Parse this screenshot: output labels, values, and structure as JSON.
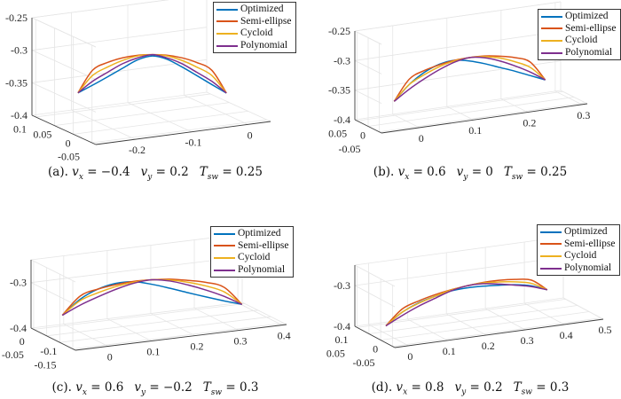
{
  "colors": {
    "Optimized": "#0072BD",
    "Semi-ellipse": "#D95319",
    "Cycloid": "#EDB120",
    "Polynomial": "#7E2F8E",
    "grid": "#e5e5e5",
    "axis": "#3c3c3c"
  },
  "legend": [
    "Optimized",
    "Semi-ellipse",
    "Cycloid",
    "Polynomial"
  ],
  "captions": [
    {
      "label": "(a).",
      "vx": "= −0.4",
      "vy": "= 0.2",
      "tsw": "= 0.25"
    },
    {
      "label": "(b).",
      "vx": "= 0.6",
      "vy": "= 0",
      "tsw": "= 0.25"
    },
    {
      "label": "(c).",
      "vx": "= 0.6",
      "vy": "= −0.2",
      "tsw": "= 0.3"
    },
    {
      "label": "(d).",
      "vx": "= 0.8",
      "vy": "= 0.2",
      "tsw": "= 0.3"
    }
  ],
  "caption_symbols": {
    "v": "v",
    "x": "x",
    "y": "y",
    "T": "T",
    "sw": "sw"
  },
  "chart_data": [
    {
      "type": "line3d",
      "grid": true,
      "legend_position": "top-right",
      "xlim": [
        -0.27,
        0.04
      ],
      "ylim": [
        -0.06,
        0.11
      ],
      "zlim": [
        -0.4,
        -0.25
      ],
      "xticks": [
        -0.2,
        -0.1,
        0
      ],
      "xticklabels": [
        "-0.2",
        "-0.1",
        "0"
      ],
      "yticks": [
        -0.05,
        0,
        0.05,
        0.1
      ],
      "yticklabels": [
        "-0.05",
        "0",
        "0.05",
        "0.1"
      ],
      "zticks": [
        -0.4,
        -0.35,
        -0.3,
        -0.25
      ],
      "zticklabels": [
        "-0.4",
        "-0.35",
        "-0.3",
        "-0.25"
      ],
      "x": [
        -0.239,
        -0.219,
        -0.198,
        -0.178,
        -0.157,
        -0.137,
        -0.117,
        -0.096,
        -0.076,
        -0.055,
        -0.035
      ],
      "y": [
        0.034,
        0.025,
        0.016,
        0.007,
        -0.002,
        -0.011,
        -0.019,
        -0.028,
        -0.037,
        -0.046,
        -0.055
      ],
      "series": [
        {
          "name": "Optimized",
          "z": [
            -0.349,
            -0.337,
            -0.324,
            -0.311,
            -0.298,
            -0.292,
            -0.297,
            -0.309,
            -0.322,
            -0.336,
            -0.349
          ]
        },
        {
          "name": "Semi-ellipse",
          "z": [
            -0.349,
            -0.314,
            -0.302,
            -0.295,
            -0.291,
            -0.29,
            -0.291,
            -0.295,
            -0.302,
            -0.314,
            -0.349
          ]
        },
        {
          "name": "Cycloid",
          "z": [
            -0.349,
            -0.322,
            -0.309,
            -0.299,
            -0.292,
            -0.29,
            -0.292,
            -0.299,
            -0.309,
            -0.322,
            -0.349
          ]
        },
        {
          "name": "Polynomial",
          "z": [
            -0.349,
            -0.331,
            -0.317,
            -0.304,
            -0.295,
            -0.29,
            -0.295,
            -0.304,
            -0.317,
            -0.331,
            -0.349
          ]
        }
      ]
    },
    {
      "type": "line3d",
      "grid": true,
      "legend_position": "top-right",
      "xlim": [
        -0.07,
        0.31
      ],
      "ylim": [
        -0.06,
        0.06
      ],
      "zlim": [
        -0.4,
        -0.25
      ],
      "xticks": [
        0,
        0.1,
        0.2,
        0.3
      ],
      "xticklabels": [
        "0",
        "0.1",
        "0.2",
        "0.3"
      ],
      "yticks": [
        -0.05,
        0,
        0.05
      ],
      "yticklabels": [
        "-0.05",
        "0",
        "0.05"
      ],
      "zticks": [
        -0.4,
        -0.35,
        -0.3,
        -0.25
      ],
      "zticklabels": [
        "-0.4",
        "-0.35",
        "-0.3",
        "-0.25"
      ],
      "x": [
        -0.022,
        0.006,
        0.034,
        0.062,
        0.09,
        0.118,
        0.145,
        0.173,
        0.201,
        0.229,
        0.257
      ],
      "y": [
        0,
        0,
        0,
        0,
        0,
        0,
        0,
        0,
        0,
        0,
        0
      ],
      "series": [
        {
          "name": "Optimized",
          "z": [
            -0.364,
            -0.339,
            -0.322,
            -0.312,
            -0.309,
            -0.314,
            -0.322,
            -0.332,
            -0.342,
            -0.353,
            -0.364
          ]
        },
        {
          "name": "Semi-ellipse",
          "z": [
            -0.364,
            -0.33,
            -0.319,
            -0.313,
            -0.309,
            -0.308,
            -0.309,
            -0.313,
            -0.319,
            -0.33,
            -0.364
          ]
        },
        {
          "name": "Cycloid",
          "z": [
            -0.364,
            -0.339,
            -0.326,
            -0.316,
            -0.31,
            -0.308,
            -0.31,
            -0.316,
            -0.326,
            -0.339,
            -0.364
          ]
        },
        {
          "name": "Polynomial",
          "z": [
            -0.364,
            -0.347,
            -0.333,
            -0.321,
            -0.312,
            -0.308,
            -0.312,
            -0.321,
            -0.333,
            -0.347,
            -0.364
          ]
        }
      ]
    },
    {
      "type": "line3d",
      "grid": true,
      "legend_position": "top-right",
      "xlim": [
        -0.075,
        0.41
      ],
      "ylim": [
        -0.16,
        0.01
      ],
      "zlim": [
        -0.4,
        -0.25
      ],
      "xticks": [
        0,
        0.1,
        0.2,
        0.3,
        0.4
      ],
      "xticklabels": [
        "0",
        "0.1",
        "0.2",
        "0.3",
        "0.4"
      ],
      "yticks": [
        -0.15,
        -0.1,
        -0.05,
        0
      ],
      "yticklabels": [
        "-0.15",
        "-0.1",
        "-0.05",
        "0"
      ],
      "zticks": [
        -0.4,
        -0.3
      ],
      "zticklabels": [
        "-0.4",
        "-0.3"
      ],
      "x": [
        -0.044,
        -0.007,
        0.03,
        0.068,
        0.105,
        0.142,
        0.179,
        0.216,
        0.254,
        0.291,
        0.328
      ],
      "y": [
        -0.058,
        -0.065,
        -0.072,
        -0.078,
        -0.085,
        -0.092,
        -0.099,
        -0.106,
        -0.112,
        -0.119,
        -0.126
      ],
      "series": [
        {
          "name": "Optimized",
          "z": [
            -0.356,
            -0.323,
            -0.303,
            -0.293,
            -0.292,
            -0.3,
            -0.311,
            -0.323,
            -0.335,
            -0.346,
            -0.356
          ]
        },
        {
          "name": "Semi-ellipse",
          "z": [
            -0.356,
            -0.316,
            -0.303,
            -0.296,
            -0.291,
            -0.29,
            -0.291,
            -0.296,
            -0.303,
            -0.316,
            -0.356
          ]
        },
        {
          "name": "Cycloid",
          "z": [
            -0.356,
            -0.326,
            -0.311,
            -0.3,
            -0.293,
            -0.29,
            -0.293,
            -0.3,
            -0.311,
            -0.326,
            -0.356
          ]
        },
        {
          "name": "Polynomial",
          "z": [
            -0.356,
            -0.336,
            -0.32,
            -0.306,
            -0.295,
            -0.29,
            -0.295,
            -0.306,
            -0.32,
            -0.336,
            -0.356
          ]
        }
      ]
    },
    {
      "type": "line3d",
      "grid": true,
      "legend_position": "top-right",
      "xlim": [
        -0.035,
        0.5
      ],
      "ylim": [
        -0.06,
        0.11
      ],
      "zlim": [
        -0.4,
        -0.25
      ],
      "xticks": [
        0,
        0.1,
        0.2,
        0.3,
        0.4,
        0.5
      ],
      "xticklabels": [
        "0",
        "0.1",
        "0.2",
        "0.3",
        "0.4",
        "0.5"
      ],
      "yticks": [
        -0.05,
        0,
        0.05,
        0.1
      ],
      "yticklabels": [
        "-0.05",
        "0",
        "0.05",
        "0.1"
      ],
      "zticks": [
        -0.4,
        -0.3
      ],
      "zticklabels": [
        "-0.4",
        "-0.3"
      ],
      "x": [
        -0.017,
        0.028,
        0.072,
        0.117,
        0.161,
        0.206,
        0.25,
        0.295,
        0.339,
        0.384,
        0.428
      ],
      "y": [
        0.008,
        0.013,
        0.018,
        0.023,
        0.028,
        0.034,
        0.039,
        0.044,
        0.049,
        0.054,
        0.059
      ],
      "series": [
        {
          "name": "Optimized",
          "z": [
            -0.37,
            -0.344,
            -0.329,
            -0.32,
            -0.314,
            -0.314,
            -0.317,
            -0.322,
            -0.328,
            -0.338,
            -0.355
          ]
        },
        {
          "name": "Semi-ellipse",
          "z": [
            -0.37,
            -0.336,
            -0.324,
            -0.316,
            -0.311,
            -0.309,
            -0.308,
            -0.31,
            -0.315,
            -0.324,
            -0.355
          ]
        },
        {
          "name": "Cycloid",
          "z": [
            -0.37,
            -0.344,
            -0.33,
            -0.32,
            -0.312,
            -0.309,
            -0.309,
            -0.314,
            -0.321,
            -0.332,
            -0.355
          ]
        },
        {
          "name": "Polynomial",
          "z": [
            -0.37,
            -0.352,
            -0.337,
            -0.325,
            -0.314,
            -0.309,
            -0.311,
            -0.319,
            -0.329,
            -0.34,
            -0.355
          ]
        }
      ]
    }
  ]
}
